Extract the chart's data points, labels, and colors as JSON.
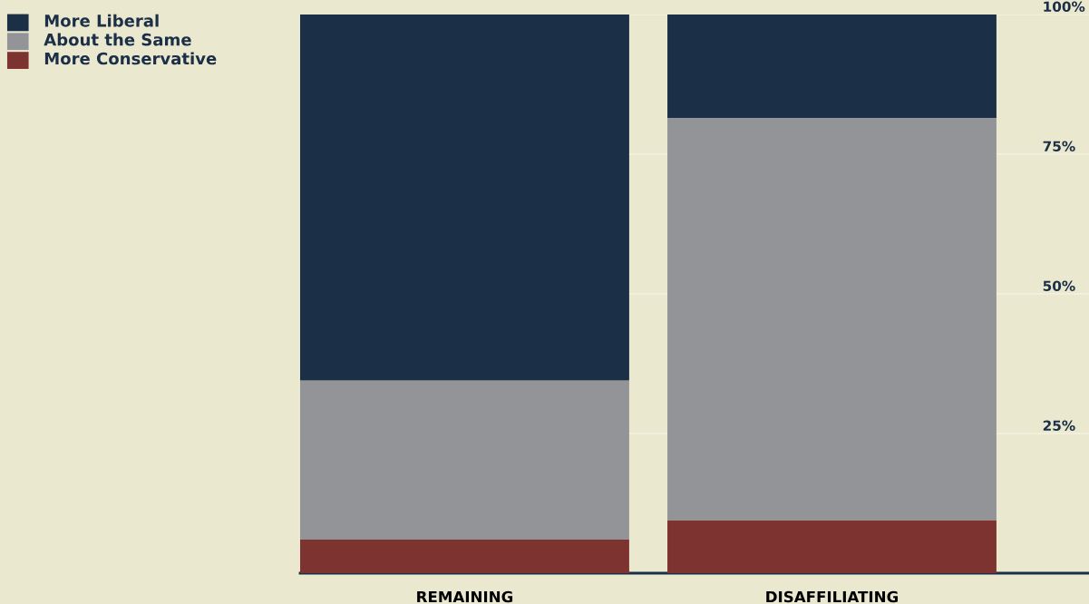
{
  "chart_data": {
    "type": "bar",
    "stacked": true,
    "categories": [
      "REMAINING",
      "DISAFFILIATING"
    ],
    "series": [
      {
        "name": "More Conservative",
        "color": "#7d3330",
        "values": [
          6,
          9.5
        ]
      },
      {
        "name": "About the Same",
        "color": "#939498",
        "values": [
          28.5,
          72
        ]
      },
      {
        "name": "More Liberal",
        "color": "#1b2f47",
        "values": [
          65.5,
          18.5
        ]
      }
    ],
    "ylim": [
      0,
      100
    ],
    "yticks": [
      {
        "value": 25,
        "label": "25%"
      },
      {
        "value": 50,
        "label": "50%"
      },
      {
        "value": 75,
        "label": "75%"
      },
      {
        "value": 100,
        "label": "100%"
      }
    ],
    "grid": "y",
    "legend": "top left"
  }
}
